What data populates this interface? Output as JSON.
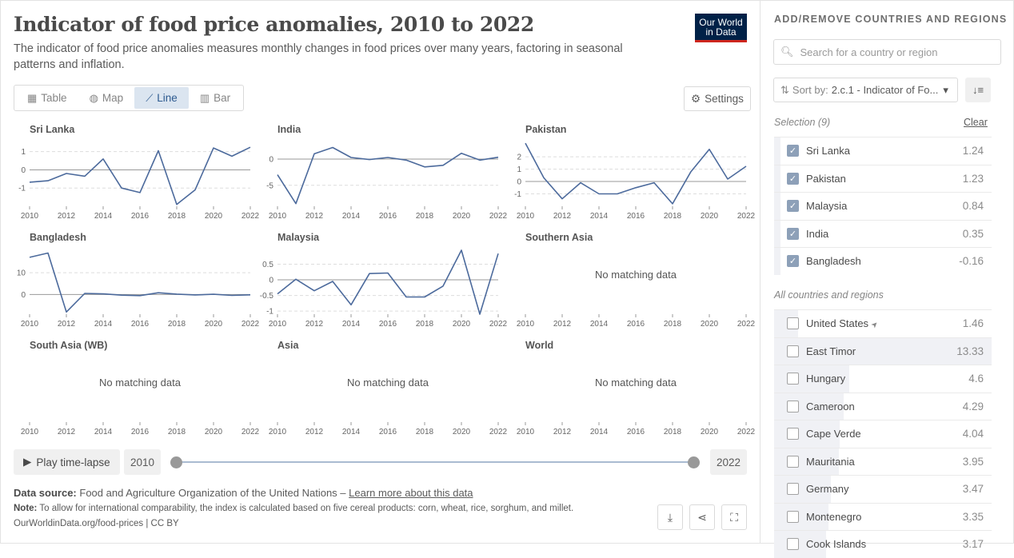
{
  "header": {
    "title": "Indicator of food price anomalies, 2010 to 2022",
    "subtitle": "The indicator of food price anomalies measures monthly changes in food prices over many years, factoring in seasonal patterns and inflation.",
    "logo_line1": "Our World",
    "logo_line2": "in Data"
  },
  "tabs": [
    {
      "label": "Table",
      "icon": "table-icon",
      "active": false
    },
    {
      "label": "Map",
      "icon": "globe-icon",
      "active": false
    },
    {
      "label": "Line",
      "icon": "line-chart-icon",
      "active": true
    },
    {
      "label": "Bar",
      "icon": "bar-chart-icon",
      "active": false
    }
  ],
  "settings_label": "Settings",
  "no_data_text": "No matching data",
  "chart_data": [
    {
      "type": "line",
      "title": "Sri Lanka",
      "x": [
        2010,
        2011,
        2012,
        2013,
        2014,
        2015,
        2016,
        2017,
        2018,
        2019,
        2020,
        2021,
        2022
      ],
      "values": [
        -0.68,
        -0.6,
        -0.2,
        -0.35,
        0.6,
        -1.0,
        -1.25,
        1.05,
        -1.9,
        -1.1,
        1.2,
        0.75,
        1.24
      ],
      "ylim": [
        -2,
        1.6
      ],
      "yticks": [
        -1,
        0,
        1
      ]
    },
    {
      "type": "line",
      "title": "India",
      "x": [
        2010,
        2011,
        2012,
        2013,
        2014,
        2015,
        2016,
        2017,
        2018,
        2019,
        2020,
        2021,
        2022
      ],
      "values": [
        -3,
        -8.5,
        1,
        2.2,
        0.3,
        -0.1,
        0.3,
        -0.2,
        -1.5,
        -1.2,
        1.1,
        -0.2,
        0.35
      ],
      "ylim": [
        -9,
        3.5
      ],
      "yticks": [
        -5,
        0
      ]
    },
    {
      "type": "line",
      "title": "Pakistan",
      "x": [
        2010,
        2011,
        2012,
        2013,
        2014,
        2015,
        2016,
        2017,
        2018,
        2019,
        2020,
        2021,
        2022
      ],
      "values": [
        3.1,
        0.3,
        -1.4,
        -0.1,
        -1.0,
        -1.0,
        -0.5,
        -0.1,
        -1.8,
        0.8,
        2.6,
        0.2,
        1.23
      ],
      "ylim": [
        -2,
        3.3
      ],
      "yticks": [
        -1,
        0,
        1,
        2
      ]
    },
    {
      "type": "line",
      "title": "Bangladesh",
      "x": [
        2010,
        2011,
        2012,
        2013,
        2014,
        2015,
        2016,
        2017,
        2018,
        2019,
        2020,
        2021,
        2022
      ],
      "values": [
        17,
        19,
        -8,
        0.5,
        0.3,
        -0.3,
        -0.5,
        0.8,
        0.2,
        -0.2,
        0.1,
        -0.4,
        -0.16
      ],
      "ylim": [
        -9,
        21
      ],
      "yticks": [
        0,
        10
      ]
    },
    {
      "type": "line",
      "title": "Malaysia",
      "x": [
        2010,
        2011,
        2012,
        2013,
        2014,
        2015,
        2016,
        2017,
        2018,
        2019,
        2020,
        2021,
        2022
      ],
      "values": [
        -0.45,
        0.02,
        -0.35,
        -0.05,
        -0.8,
        0.2,
        0.22,
        -0.55,
        -0.55,
        -0.2,
        0.95,
        -1.1,
        0.84
      ],
      "ylim": [
        -1.1,
        1.0
      ],
      "yticks": [
        -1,
        -0.5,
        0,
        0.5
      ]
    },
    {
      "type": "line",
      "title": "Southern Asia",
      "x": [],
      "values": [],
      "no_data": true
    },
    {
      "type": "line",
      "title": "South Asia (WB)",
      "x": [],
      "values": [],
      "no_data": true
    },
    {
      "type": "line",
      "title": "Asia",
      "x": [],
      "values": [],
      "no_data": true
    },
    {
      "type": "line",
      "title": "World",
      "x": [],
      "values": [],
      "no_data": true
    }
  ],
  "xticks": [
    2010,
    2012,
    2014,
    2016,
    2018,
    2020,
    2022
  ],
  "line_color": "#4c6a9c",
  "timeline": {
    "play_label": "Play time-lapse",
    "start_year": "2010",
    "end_year": "2022"
  },
  "footer": {
    "source_label": "Data source:",
    "source_text": "Food and Agriculture Organization of the United Nations – ",
    "source_link": "Learn more about this data",
    "note_label": "Note:",
    "note_text": "To allow for international comparability, the index is calculated based on five cereal products: corn, wheat, rice, sorghum, and millet.",
    "url": "OurWorldinData.org/food-prices | CC BY"
  },
  "sidebar": {
    "heading": "ADD/REMOVE COUNTRIES AND REGIONS",
    "search_placeholder": "Search for a country or region",
    "sort_label": "Sort by:",
    "sort_value": "2.c.1 - Indicator of Fo...",
    "selection_label": "Selection (9)",
    "clear_label": "Clear",
    "all_label": "All countries and regions",
    "selected": [
      {
        "name": "Sri Lanka",
        "value": "1.24"
      },
      {
        "name": "Pakistan",
        "value": "1.23"
      },
      {
        "name": "Malaysia",
        "value": "0.84"
      },
      {
        "name": "India",
        "value": "0.35"
      },
      {
        "name": "Bangladesh",
        "value": "-0.16"
      }
    ],
    "all": [
      {
        "name": "United States",
        "value": "1.46",
        "bar": 0.11,
        "locate": true
      },
      {
        "name": "East Timor",
        "value": "13.33",
        "bar": 1.0
      },
      {
        "name": "Hungary",
        "value": "4.6",
        "bar": 0.345
      },
      {
        "name": "Cameroon",
        "value": "4.29",
        "bar": 0.32
      },
      {
        "name": "Cape Verde",
        "value": "4.04",
        "bar": 0.3
      },
      {
        "name": "Mauritania",
        "value": "3.95",
        "bar": 0.296
      },
      {
        "name": "Germany",
        "value": "3.47",
        "bar": 0.26
      },
      {
        "name": "Montenegro",
        "value": "3.35",
        "bar": 0.25
      },
      {
        "name": "Cook Islands",
        "value": "3.17",
        "bar": 0.24
      }
    ]
  }
}
